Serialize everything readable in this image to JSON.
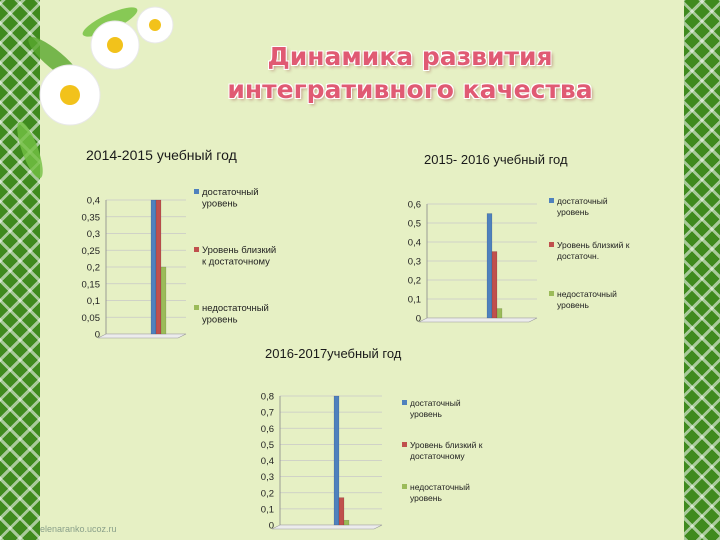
{
  "title": "Динамика развития интегративного качества",
  "watermark": "elenaranko.ucoz.ru",
  "colors": {
    "series1": "#4f81bd",
    "series2": "#c0504d",
    "series3": "#9bbb59",
    "title": "#e05a73"
  },
  "chart_data": [
    {
      "type": "bar",
      "title": "2014-2015 учебный год",
      "legend_position": "right",
      "ylim": [
        0,
        0.4
      ],
      "ticks": [
        "0",
        "0,05",
        "0,1",
        "0,15",
        "0,2",
        "0,25",
        "0,3",
        "0,35",
        "0,4"
      ],
      "series": [
        {
          "name": "достаточный уровень",
          "values": [
            0.4
          ]
        },
        {
          "name": "Уровень близкий к достаточному",
          "values": [
            0.4
          ]
        },
        {
          "name": "недостаточный уровень",
          "values": [
            0.2
          ]
        }
      ]
    },
    {
      "type": "bar",
      "title": "2015- 2016 учебный год",
      "legend_position": "right",
      "ylim": [
        0,
        0.6
      ],
      "ticks": [
        "0",
        "0,1",
        "0,2",
        "0,3",
        "0,4",
        "0,5",
        "0,6"
      ],
      "series": [
        {
          "name": "достаточный уровень",
          "values": [
            0.55
          ]
        },
        {
          "name": "Уровень близкий к достаточн.",
          "values": [
            0.35
          ]
        },
        {
          "name": "недостаточный уровень",
          "values": [
            0.05
          ]
        }
      ]
    },
    {
      "type": "bar",
      "title": "2016-2017учебный год",
      "legend_position": "right",
      "ylim": [
        0,
        0.8
      ],
      "ticks": [
        "0",
        "0,1",
        "0,2",
        "0,3",
        "0,4",
        "0,5",
        "0,6",
        "0,7",
        "0,8"
      ],
      "series": [
        {
          "name": "достаточный уровень",
          "values": [
            0.8
          ]
        },
        {
          "name": "Уровень близкий к достаточному",
          "values": [
            0.17
          ]
        },
        {
          "name": "недостаточный уровень",
          "values": [
            0.03
          ]
        }
      ]
    }
  ]
}
